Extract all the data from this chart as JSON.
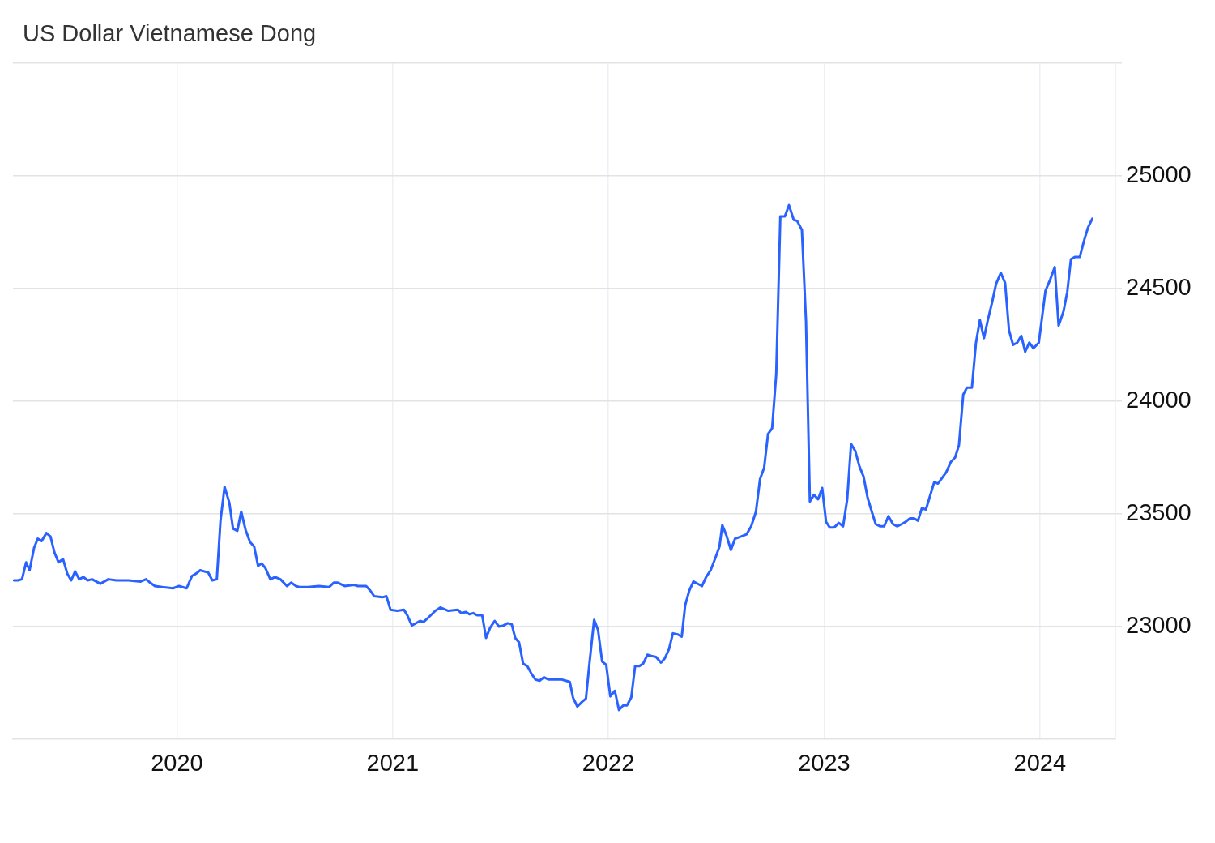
{
  "chart_data": {
    "type": "line",
    "title": "US Dollar Vietnamese Dong",
    "x": [
      2019.245,
      2019.263,
      2019.282,
      2019.301,
      2019.317,
      2019.338,
      2019.355,
      2019.373,
      2019.395,
      2019.414,
      2019.432,
      2019.451,
      2019.472,
      2019.492,
      2019.51,
      2019.528,
      2019.547,
      2019.567,
      2019.586,
      2019.607,
      2019.645,
      2019.682,
      2019.72,
      2019.776,
      2019.832,
      2019.857,
      2019.876,
      2019.898,
      2019.932,
      2019.982,
      2020.01,
      2020.045,
      2020.07,
      2020.089,
      2020.108,
      2020.145,
      2020.164,
      2020.185,
      2020.202,
      2020.221,
      2020.243,
      2020.26,
      2020.28,
      2020.298,
      2020.318,
      2020.339,
      2020.358,
      2020.376,
      2020.393,
      2020.41,
      2020.433,
      2020.455,
      2020.48,
      2020.51,
      2020.53,
      2020.552,
      2020.57,
      2020.608,
      2020.658,
      2020.705,
      2020.727,
      2020.746,
      2020.777,
      2020.821,
      2020.839,
      2020.877,
      2020.896,
      2020.914,
      2020.952,
      2020.971,
      2020.99,
      2021.021,
      2021.052,
      2021.068,
      2021.089,
      2021.127,
      2021.143,
      2021.171,
      2021.198,
      2021.221,
      2021.258,
      2021.302,
      2021.318,
      2021.34,
      2021.356,
      2021.373,
      2021.393,
      2021.415,
      2021.433,
      2021.452,
      2021.473,
      2021.493,
      2021.514,
      2021.533,
      2021.552,
      2021.568,
      2021.586,
      2021.605,
      2021.624,
      2021.644,
      2021.662,
      2021.681,
      2021.702,
      2021.723,
      2021.746,
      2021.784,
      2021.802,
      2021.821,
      2021.836,
      2021.856,
      2021.877,
      2021.896,
      2021.911,
      2021.934,
      2021.952,
      2021.971,
      2021.99,
      2022.009,
      2022.03,
      2022.049,
      2022.069,
      2022.086,
      2022.106,
      2022.124,
      2022.144,
      2022.161,
      2022.181,
      2022.199,
      2022.221,
      2022.244,
      2022.262,
      2022.281,
      2022.299,
      2022.322,
      2022.34,
      2022.356,
      2022.375,
      2022.394,
      2022.434,
      2022.453,
      2022.474,
      2022.496,
      2022.515,
      2022.528,
      2022.547,
      2022.568,
      2022.587,
      2022.615,
      2022.641,
      2022.662,
      2022.684,
      2022.703,
      2022.722,
      2022.74,
      2022.759,
      2022.778,
      2022.797,
      2022.818,
      2022.837,
      2022.859,
      2022.875,
      2022.897,
      2022.916,
      2022.934,
      2022.953,
      2022.972,
      2022.991,
      2023.009,
      2023.026,
      2023.047,
      2023.068,
      2023.088,
      2023.107,
      2023.125,
      2023.144,
      2023.164,
      2023.183,
      2023.202,
      2023.221,
      2023.239,
      2023.26,
      2023.278,
      2023.298,
      2023.319,
      2023.338,
      2023.36,
      2023.378,
      2023.397,
      2023.417,
      2023.435,
      2023.453,
      2023.472,
      2023.491,
      2023.51,
      2023.528,
      2023.547,
      2023.566,
      2023.587,
      2023.607,
      2023.625,
      2023.645,
      2023.662,
      2023.685,
      2023.704,
      2023.722,
      2023.741,
      2023.76,
      2023.779,
      2023.797,
      2023.819,
      2023.839,
      2023.857,
      2023.876,
      2023.895,
      2023.914,
      2023.932,
      2023.951,
      2023.97,
      2023.995,
      2024.01,
      2024.026,
      2024.048,
      2024.069,
      2024.087,
      2024.11,
      2024.127,
      2024.144,
      2024.162,
      2024.185,
      2024.204,
      2024.223,
      2024.243
    ],
    "values": [
      23205,
      23205,
      23210,
      23285,
      23250,
      23350,
      23390,
      23380,
      23415,
      23400,
      23330,
      23285,
      23300,
      23235,
      23205,
      23245,
      23210,
      23220,
      23205,
      23210,
      23190,
      23210,
      23205,
      23205,
      23200,
      23210,
      23195,
      23180,
      23175,
      23170,
      23180,
      23170,
      23225,
      23235,
      23250,
      23240,
      23205,
      23210,
      23470,
      23620,
      23550,
      23435,
      23425,
      23510,
      23430,
      23375,
      23355,
      23270,
      23280,
      23260,
      23210,
      23220,
      23210,
      23180,
      23195,
      23180,
      23175,
      23175,
      23180,
      23175,
      23195,
      23195,
      23180,
      23185,
      23180,
      23180,
      23160,
      23135,
      23130,
      23135,
      23075,
      23070,
      23075,
      23050,
      23005,
      23025,
      23020,
      23045,
      23070,
      23085,
      23070,
      23075,
      23060,
      23065,
      23055,
      23060,
      23050,
      23050,
      22950,
      22995,
      23025,
      23000,
      23005,
      23015,
      23010,
      22950,
      22930,
      22835,
      22825,
      22790,
      22765,
      22760,
      22775,
      22765,
      22765,
      22765,
      22760,
      22755,
      22685,
      22645,
      22665,
      22680,
      22825,
      23030,
      22985,
      22845,
      22830,
      22690,
      22715,
      22630,
      22650,
      22650,
      22685,
      22825,
      22825,
      22835,
      22875,
      22870,
      22865,
      22840,
      22860,
      22900,
      22970,
      22965,
      22955,
      23095,
      23160,
      23200,
      23180,
      23220,
      23250,
      23305,
      23355,
      23450,
      23405,
      23340,
      23390,
      23400,
      23410,
      23445,
      23510,
      23655,
      23705,
      23855,
      23880,
      24120,
      24820,
      24820,
      24870,
      24805,
      24800,
      24760,
      24355,
      23555,
      23585,
      23565,
      23615,
      23465,
      23440,
      23440,
      23460,
      23445,
      23565,
      23810,
      23780,
      23710,
      23665,
      23570,
      23510,
      23455,
      23445,
      23445,
      23490,
      23455,
      23445,
      23455,
      23465,
      23480,
      23480,
      23470,
      23525,
      23520,
      23580,
      23640,
      23635,
      23660,
      23685,
      23730,
      23750,
      23805,
      24030,
      24060,
      24060,
      24260,
      24360,
      24280,
      24365,
      24440,
      24520,
      24570,
      24525,
      24315,
      24250,
      24260,
      24290,
      24220,
      24260,
      24235,
      24260,
      24370,
      24490,
      24540,
      24595,
      24335,
      24400,
      24485,
      24630,
      24640,
      24640,
      24710,
      24770,
      24810
    ],
    "color": "#2962ff",
    "xlim": [
      2019.24,
      2024.35
    ],
    "xticks": [
      2020,
      2021,
      2022,
      2023,
      2024
    ],
    "ylim": [
      22500,
      25500
    ],
    "yticks": [
      23000,
      23500,
      24000,
      24500,
      25000,
      {
        "value": 25500,
        "label": null
      }
    ],
    "grid": true
  }
}
